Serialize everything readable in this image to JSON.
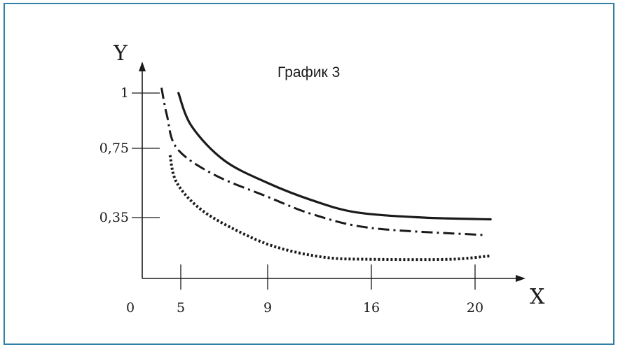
{
  "chart_data": {
    "type": "line",
    "title": "График 3",
    "xlabel": "X",
    "ylabel": "Y",
    "x_ticks": [
      {
        "value": 0,
        "label": "0"
      },
      {
        "value": 5,
        "label": "5"
      },
      {
        "value": 9,
        "label": "9"
      },
      {
        "value": 16,
        "label": "16"
      },
      {
        "value": 20,
        "label": "20"
      }
    ],
    "y_ticks": [
      {
        "value": 0.35,
        "label": "0,35"
      },
      {
        "value": 0.75,
        "label": "0,75"
      },
      {
        "value": 1,
        "label": "1"
      }
    ],
    "grid": false,
    "colors": {
      "frame": "#2f7fa6",
      "ink": "#1a1a1a"
    },
    "series": [
      {
        "style": "solid",
        "x": [
          4.7,
          5.5,
          7,
          9,
          12,
          15,
          18,
          21.2
        ],
        "y": [
          1.0,
          0.85,
          0.68,
          0.55,
          0.45,
          0.38,
          0.35,
          0.34
        ]
      },
      {
        "style": "dash-dot",
        "x": [
          2.5,
          3.2,
          4.5,
          6.5,
          9,
          12,
          16,
          20.6
        ],
        "y": [
          1.03,
          0.9,
          0.75,
          0.6,
          0.47,
          0.37,
          0.29,
          0.25
        ]
      },
      {
        "style": "dotted",
        "x": [
          3.6,
          4.5,
          6,
          8,
          10,
          13,
          16,
          19,
          21.2
        ],
        "y": [
          0.71,
          0.55,
          0.39,
          0.25,
          0.17,
          0.12,
          0.11,
          0.11,
          0.13
        ]
      }
    ]
  }
}
